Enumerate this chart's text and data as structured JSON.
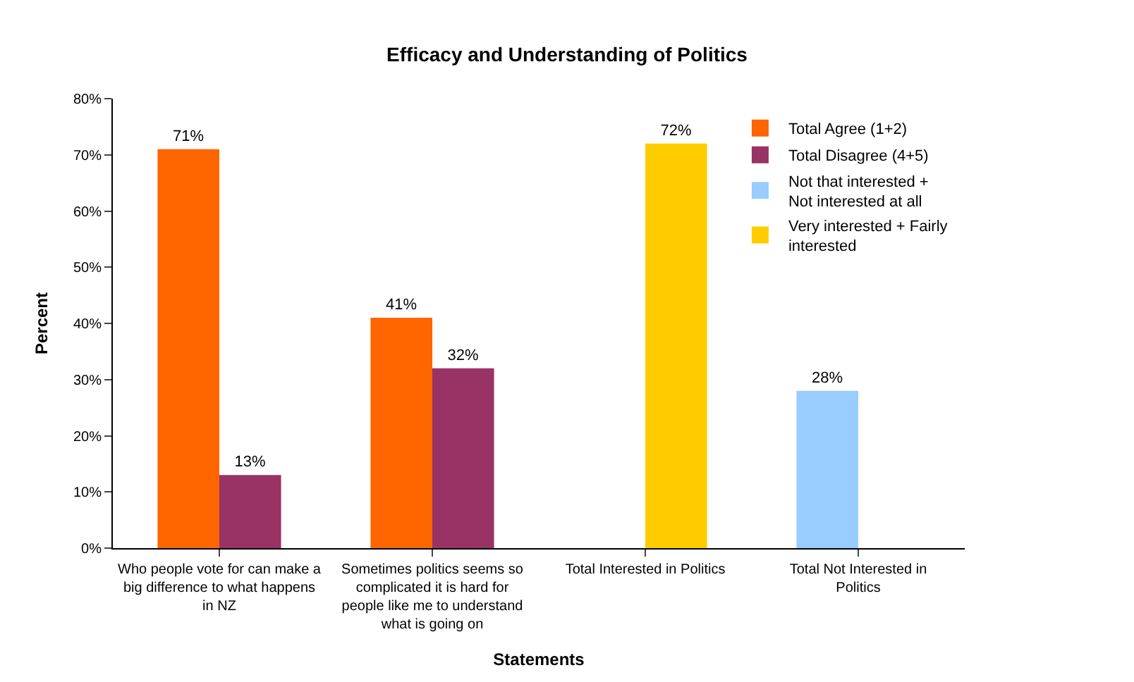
{
  "chart_data": {
    "type": "bar",
    "title": "Efficacy and Understanding of Politics",
    "xlabel": "Statements",
    "ylabel": "Percent",
    "categories": [
      "Who people vote for can make a big difference to what happens in NZ",
      "Sometimes politics seems so complicated it is hard for people like me to understand what is going on",
      "Total Interested in Politics",
      "Total Not Interested in Politics"
    ],
    "series": [
      {
        "name": "Total Agree (1+2)",
        "color": "#ff6600",
        "values": [
          71,
          41,
          null,
          null
        ],
        "value_labels": [
          "71%",
          "41%",
          null,
          null
        ]
      },
      {
        "name": "Total Disagree (4+5)",
        "color": "#993366",
        "values": [
          13,
          32,
          null,
          null
        ],
        "value_labels": [
          "13%",
          "32%",
          null,
          null
        ]
      },
      {
        "name": "Not that interested + Not interested at all",
        "color": "#99ccff",
        "values": [
          null,
          null,
          null,
          28
        ],
        "value_labels": [
          null,
          null,
          null,
          "28%"
        ]
      },
      {
        "name": "Very interested + Fairly interested",
        "color": "#ffcc00",
        "values": [
          null,
          null,
          72,
          null
        ],
        "value_labels": [
          null,
          null,
          "72%",
          null
        ]
      }
    ],
    "ylim": [
      0,
      80
    ],
    "yticks": [
      {
        "value": 0,
        "label": "0%"
      },
      {
        "value": 10,
        "label": "10%"
      },
      {
        "value": 20,
        "label": "20%"
      },
      {
        "value": 30,
        "label": "30%"
      },
      {
        "value": 40,
        "label": "40%"
      },
      {
        "value": 50,
        "label": "50%"
      },
      {
        "value": 60,
        "label": "60%"
      },
      {
        "value": 70,
        "label": "70%"
      },
      {
        "value": 80,
        "label": "80%"
      }
    ],
    "grid": false,
    "legend": "top right"
  }
}
